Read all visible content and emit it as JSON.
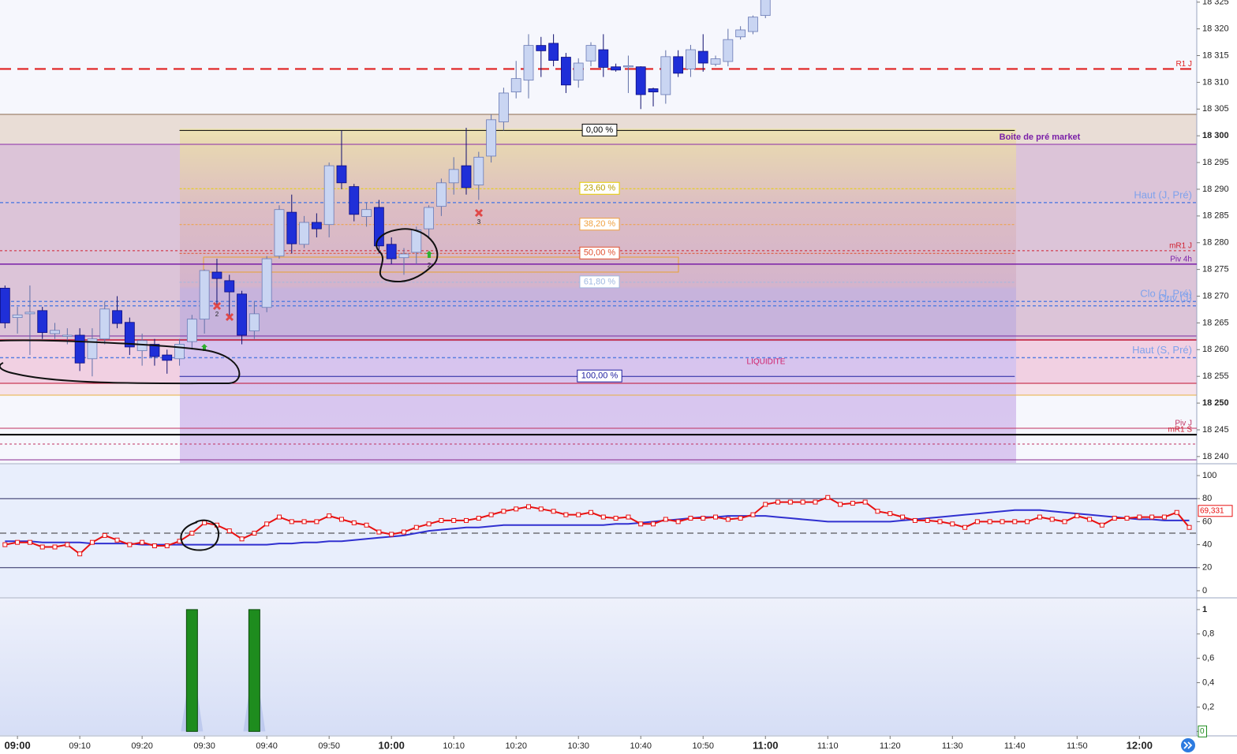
{
  "chart_data": [
    {
      "type": "candlestick",
      "x": [
        538,
        540,
        542,
        544,
        546,
        548,
        550,
        552,
        554,
        556,
        558,
        560,
        562,
        564,
        566,
        568,
        570,
        572,
        574,
        576,
        578,
        580,
        582,
        584,
        586,
        588,
        590,
        592,
        594,
        596,
        598,
        600,
        602,
        604,
        606,
        608,
        610,
        612,
        614,
        616,
        618,
        620,
        622,
        624,
        626,
        628,
        630,
        632,
        634,
        636,
        638,
        640,
        642,
        644,
        646,
        648,
        650,
        652,
        654,
        656,
        658,
        660
      ],
      "open": [
        18271.5,
        18266,
        18266.7,
        18267.3,
        18263,
        18262.5,
        18262.7,
        18258.3,
        18262,
        18267.3,
        18265.1,
        18259.8,
        18261,
        18259,
        18258.3,
        18261.5,
        18265.7,
        18274.5,
        18272.9,
        18270.4,
        18263.5,
        18267.9,
        18277.5,
        18285.7,
        18279.7,
        18283.8,
        18283.4,
        18294.4,
        18290.5,
        18284.9,
        18286.6,
        18279.7,
        18277.2,
        18278.2,
        18282.6,
        18286.8,
        18291.2,
        18294.4,
        18290.8,
        18296.2,
        18302.6,
        18308.2,
        18310.4,
        18316.9,
        18317.3,
        18314.7,
        18310.4,
        18314,
        18316.1,
        18312.9,
        18313,
        18312.9,
        18308.8,
        18307.7,
        18314.8,
        18312.5,
        18315.8,
        18313.4,
        18313.9,
        18318.5,
        18319.5,
        18322.5
      ],
      "high": [
        18272,
        18268,
        18272,
        18268,
        18265,
        18264,
        18264,
        18264,
        18269,
        18270,
        18266,
        18263,
        18262,
        18260,
        18262,
        18266.5,
        18275,
        18277,
        18274,
        18271,
        18269,
        18277.5,
        18287,
        18289,
        18285,
        18285.5,
        18295,
        18301,
        18291,
        18287.5,
        18288,
        18281,
        18279,
        18283,
        18287,
        18292,
        18296,
        18301.5,
        18297,
        18304,
        18309,
        18314,
        18319,
        18318.5,
        18319,
        18315.5,
        18314.5,
        18317.5,
        18319,
        18313.5,
        18315,
        18313,
        18309,
        18316,
        18316,
        18317,
        18319,
        18315,
        18320,
        18320.5,
        18322.5,
        18326
      ],
      "low": [
        18264,
        18263,
        18259,
        18262,
        18262,
        18261,
        18256,
        18255,
        18261,
        18264,
        18259,
        18257,
        18257,
        18255.5,
        18257,
        18260,
        18263,
        18268,
        18266,
        18261,
        18262,
        18267,
        18277,
        18278,
        18279,
        18281,
        18281,
        18290,
        18284,
        18283,
        18278,
        18276,
        18274,
        18276,
        18281,
        18285,
        18289,
        18289,
        18288,
        18295,
        18301,
        18307,
        18307,
        18311,
        18313,
        18308,
        18309,
        18313,
        18311,
        18312,
        18308,
        18305,
        18305.5,
        18306,
        18311,
        18311,
        18312,
        18313,
        18313,
        18318,
        18319,
        18322
      ],
      "close": [
        18265,
        18266.5,
        18267,
        18263.2,
        18263.6,
        18262.7,
        18257.5,
        18262,
        18267.6,
        18264.9,
        18260.5,
        18261.7,
        18258.7,
        18258,
        18261,
        18265.7,
        18274.8,
        18273.3,
        18270.8,
        18262.7,
        18266.7,
        18277,
        18286.2,
        18279.8,
        18283.8,
        18282.6,
        18294.4,
        18291.2,
        18285.3,
        18286.2,
        18279.4,
        18277,
        18277.9,
        18282.4,
        18286.6,
        18291.2,
        18293.7,
        18290.3,
        18296,
        18303,
        18308,
        18310.7,
        18316.9,
        18315.9,
        18314.1,
        18309.5,
        18313.6,
        18316.9,
        18312.8,
        18312.3,
        18313.1,
        18307.7,
        18308.2,
        18314.8,
        18311.7,
        18316.1,
        18313.6,
        18314.4,
        18318,
        18319.8,
        18322.2,
        18325.5
      ],
      "up_color": "#c9d5f2",
      "down_color": "#1f2fd8",
      "xlim": [
        537.2,
        729.2
      ],
      "xticks": [
        {
          "value": 540,
          "label": "09:00"
        },
        {
          "value": 550,
          "label": "09:10"
        },
        {
          "value": 560,
          "label": "09:20"
        },
        {
          "value": 570,
          "label": "09:30"
        },
        {
          "value": 580,
          "label": "09:40"
        },
        {
          "value": 590,
          "label": "09:50"
        },
        {
          "value": 600,
          "label": "10:00"
        },
        {
          "value": 610,
          "label": "10:10"
        },
        {
          "value": 620,
          "label": "10:20"
        },
        {
          "value": 630,
          "label": "10:30"
        },
        {
          "value": 640,
          "label": "10:40"
        },
        {
          "value": 650,
          "label": "10:50"
        },
        {
          "value": 660,
          "label": "11:00"
        },
        {
          "value": 670,
          "label": "11:10"
        },
        {
          "value": 680,
          "label": "11:20"
        },
        {
          "value": 690,
          "label": "11:30"
        },
        {
          "value": 700,
          "label": "11:40"
        },
        {
          "value": 710,
          "label": "11:50"
        },
        {
          "value": 720,
          "label": "12:00"
        }
      ],
      "ylim": [
        18238.8,
        18325.4
      ],
      "yticks": [
        {
          "value": 18240,
          "label": "18 240"
        },
        {
          "value": 18245,
          "label": "18 245"
        },
        {
          "value": 18250,
          "label": "18 250"
        },
        {
          "value": 18255,
          "label": "18 255"
        },
        {
          "value": 18260,
          "label": "18 260"
        },
        {
          "value": 18265,
          "label": "18 265"
        },
        {
          "value": 18270,
          "label": "18 270"
        },
        {
          "value": 18275,
          "label": "18 275"
        },
        {
          "value": 18280,
          "label": "18 280"
        },
        {
          "value": 18285,
          "label": "18 285"
        },
        {
          "value": 18290,
          "label": "18 290"
        },
        {
          "value": 18295,
          "label": "18 295"
        },
        {
          "value": 18300,
          "label": "18 300"
        },
        {
          "value": 18305,
          "label": "18 305"
        },
        {
          "value": 18310,
          "label": "18 310"
        },
        {
          "value": 18315,
          "label": "18 315"
        },
        {
          "value": 18320,
          "label": "18 320"
        },
        {
          "value": 18325,
          "label": "18 325"
        }
      ],
      "levels": [
        {
          "label": "R1 J",
          "value": 18312.5,
          "color": "#e02020",
          "dash": "14 8",
          "width": 2.2
        },
        {
          "label": "Haut (J, Pré)",
          "value": 18287.5,
          "color": "#5b80e0",
          "dash": "4 3",
          "width": 1.5
        },
        {
          "label": "mR1 J",
          "value": 18278.5,
          "color": "#d02030",
          "dash": "3 3",
          "width": 1
        },
        {
          "label": "Piv 4h",
          "value": 18276,
          "color": "#7a1fa8",
          "dash": "none",
          "width": 1.5
        },
        {
          "label": "Clo (J, Pré)",
          "value": 18269,
          "color": "#5b80e0",
          "dash": "4 3",
          "width": 1.5
        },
        {
          "label": "Ouv (J)",
          "value": 18268.2,
          "color": "#5b80e0",
          "dash": "4 3",
          "width": 1.5
        },
        {
          "label": "Haut (S, Pré)",
          "value": 18258.5,
          "color": "#5b80e0",
          "dash": "4 3",
          "width": 1.5
        },
        {
          "label": "Piv J",
          "value": 18245.3,
          "color": "#c03060",
          "dash": "none",
          "width": 1
        },
        {
          "label": "mR1 S",
          "value": 18244.1,
          "color": "#000000",
          "dash": "none",
          "width": 2,
          "label_color": "#d02030"
        }
      ],
      "fib": {
        "x": [
          566,
          700
        ],
        "levels": [
          {
            "label": "0,00 %",
            "value": 18301,
            "color": "#000000"
          },
          {
            "label": "23,60 %",
            "value": 18290.1,
            "color": "#e8d000"
          },
          {
            "label": "38,20 %",
            "value": 18283.4,
            "color": "#f0a040"
          },
          {
            "label": "50,00 %",
            "value": 18278,
            "color": "#e05030"
          },
          {
            "label": "61,80 %",
            "value": 18272.6,
            "color": "#a0b8e0"
          },
          {
            "label": "100,00 %",
            "value": 18255,
            "color": "#2020a0"
          }
        ]
      },
      "annotations": [
        "Boite de pré market",
        "LIQUIDITE"
      ],
      "markers": [
        "2",
        "2",
        "3"
      ]
    },
    {
      "type": "line",
      "x": [
        538,
        540,
        542,
        544,
        546,
        548,
        550,
        552,
        554,
        556,
        558,
        560,
        562,
        564,
        566,
        568,
        570,
        572,
        574,
        576,
        578,
        580,
        582,
        584,
        586,
        588,
        590,
        592,
        594,
        596,
        598,
        600,
        602,
        604,
        606,
        608,
        610,
        612,
        614,
        616,
        618,
        620,
        622,
        624,
        626,
        628,
        630,
        632,
        634,
        636,
        638,
        640,
        642,
        644,
        646,
        648,
        650,
        652,
        654,
        656,
        658,
        660,
        662,
        664,
        666,
        668,
        670,
        672,
        674,
        676,
        678,
        680,
        682,
        684,
        686,
        688,
        690,
        692,
        694,
        696,
        698,
        700,
        702,
        704,
        706,
        708,
        710,
        712,
        714,
        716,
        718,
        720,
        722,
        724,
        726,
        728
      ],
      "series": [
        {
          "color": "#e81010",
          "markers": true,
          "values": [
            40,
            42,
            42,
            38,
            38,
            40,
            32,
            42,
            48,
            44,
            40,
            42,
            39,
            39,
            43,
            50,
            59,
            57,
            52,
            45,
            50,
            58,
            64,
            60,
            60,
            60,
            65,
            62,
            59,
            57,
            51,
            49,
            51,
            55,
            58,
            61,
            61,
            61,
            63,
            66,
            69,
            71,
            73,
            71,
            69,
            66,
            66,
            68,
            64,
            63,
            64,
            58,
            58,
            62,
            60,
            63,
            63,
            64,
            62,
            63,
            66,
            75,
            77,
            77,
            77,
            77,
            81,
            75,
            76,
            77,
            69,
            67,
            64,
            61,
            61,
            60,
            58,
            55,
            60,
            60,
            60,
            60,
            60,
            64,
            62,
            60,
            65,
            62,
            57,
            63,
            63,
            64,
            64,
            64,
            68,
            55
          ]
        },
        {
          "color": "#3030d0",
          "markers": false,
          "values": [
            43,
            43,
            43,
            42,
            42,
            42,
            42,
            41,
            41,
            41,
            41,
            40,
            40,
            40,
            40,
            40,
            40,
            40,
            40,
            40,
            40,
            40,
            41,
            41,
            42,
            42,
            43,
            43,
            44,
            45,
            46,
            47,
            48,
            50,
            52,
            53,
            54,
            55,
            55,
            56,
            57,
            57,
            57,
            57,
            57,
            57,
            57,
            57,
            57,
            58,
            58,
            59,
            60,
            61,
            62,
            63,
            64,
            64,
            65,
            65,
            65,
            65,
            64,
            63,
            62,
            61,
            60,
            60,
            60,
            60,
            60,
            60,
            61,
            62,
            63,
            64,
            65,
            66,
            67,
            68,
            69,
            70,
            70,
            70,
            69,
            68,
            67,
            66,
            65,
            64,
            63,
            62,
            62,
            61,
            61,
            61
          ]
        }
      ],
      "ylim": [
        -5.5,
        109.6
      ],
      "yticks": [
        0,
        20,
        40,
        60,
        80,
        100
      ],
      "hlines": [
        20,
        80
      ],
      "dashed_hlines": [
        50
      ],
      "last_label": {
        "value": 69.331,
        "label": "69,331"
      }
    },
    {
      "type": "bar",
      "x": [
        568,
        578
      ],
      "values": [
        1,
        1
      ],
      "color": "#1e8c1e",
      "ylim": [
        -0.03,
        1.09
      ],
      "yticks": [
        0,
        {
          "value": 0.2,
          "label": "0,2"
        },
        {
          "value": 0.4,
          "label": "0,4"
        },
        {
          "value": 0.6,
          "label": "0,6"
        },
        {
          "value": 0.8,
          "label": "0,8"
        },
        1
      ],
      "last_label": {
        "value": 0,
        "label": "0"
      }
    }
  ]
}
